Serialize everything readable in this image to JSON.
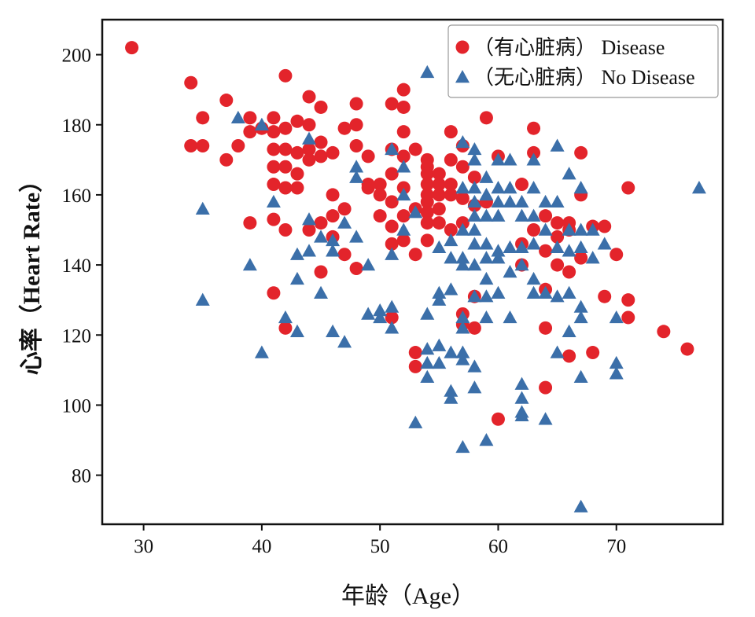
{
  "chart_data": {
    "type": "scatter",
    "xlabel": "年龄（Age）",
    "ylabel": "心率（Heart Rate）",
    "xlim": [
      26.5,
      79
    ],
    "ylim": [
      66,
      210
    ],
    "xticks": [
      30,
      40,
      50,
      60,
      70
    ],
    "yticks": [
      80,
      100,
      120,
      140,
      160,
      180,
      200
    ],
    "grid": false,
    "legend_position": "top-right",
    "series": [
      {
        "name": "（有心脏病） Disease",
        "marker": "circle",
        "color": "#e3242b",
        "points": [
          [
            29,
            202
          ],
          [
            34,
            192
          ],
          [
            34,
            174
          ],
          [
            35,
            174
          ],
          [
            35,
            182
          ],
          [
            37,
            187
          ],
          [
            37,
            170
          ],
          [
            38,
            174
          ],
          [
            39,
            182
          ],
          [
            39,
            178
          ],
          [
            39,
            152
          ],
          [
            40,
            179
          ],
          [
            41,
            182
          ],
          [
            41,
            178
          ],
          [
            41,
            173
          ],
          [
            41,
            168
          ],
          [
            41,
            163
          ],
          [
            41,
            153
          ],
          [
            41,
            132
          ],
          [
            42,
            194
          ],
          [
            42,
            179
          ],
          [
            42,
            173
          ],
          [
            42,
            168
          ],
          [
            42,
            162
          ],
          [
            42,
            150
          ],
          [
            42,
            122
          ],
          [
            43,
            181
          ],
          [
            43,
            172
          ],
          [
            43,
            166
          ],
          [
            43,
            162
          ],
          [
            44,
            188
          ],
          [
            44,
            180
          ],
          [
            44,
            173
          ],
          [
            44,
            170
          ],
          [
            44,
            150
          ],
          [
            45,
            185
          ],
          [
            45,
            175
          ],
          [
            45,
            171
          ],
          [
            45,
            152
          ],
          [
            45,
            138
          ],
          [
            46,
            172
          ],
          [
            46,
            160
          ],
          [
            46,
            154
          ],
          [
            46,
            148
          ],
          [
            47,
            179
          ],
          [
            47,
            156
          ],
          [
            47,
            143
          ],
          [
            48,
            186
          ],
          [
            48,
            180
          ],
          [
            48,
            174
          ],
          [
            48,
            139
          ],
          [
            49,
            171
          ],
          [
            49,
            163
          ],
          [
            49,
            162
          ],
          [
            50,
            163
          ],
          [
            50,
            160
          ],
          [
            50,
            154
          ],
          [
            51,
            186
          ],
          [
            51,
            173
          ],
          [
            51,
            166
          ],
          [
            51,
            158
          ],
          [
            51,
            151
          ],
          [
            51,
            146
          ],
          [
            51,
            125
          ],
          [
            52,
            190
          ],
          [
            52,
            185
          ],
          [
            52,
            178
          ],
          [
            52,
            171
          ],
          [
            52,
            162
          ],
          [
            52,
            154
          ],
          [
            52,
            147
          ],
          [
            53,
            173
          ],
          [
            53,
            156
          ],
          [
            53,
            143
          ],
          [
            53,
            115
          ],
          [
            53,
            111
          ],
          [
            54,
            170
          ],
          [
            54,
            168
          ],
          [
            54,
            166
          ],
          [
            54,
            163
          ],
          [
            54,
            160
          ],
          [
            54,
            158
          ],
          [
            54,
            155
          ],
          [
            54,
            152
          ],
          [
            54,
            147
          ],
          [
            55,
            166
          ],
          [
            55,
            163
          ],
          [
            55,
            160
          ],
          [
            55,
            156
          ],
          [
            55,
            152
          ],
          [
            56,
            178
          ],
          [
            56,
            170
          ],
          [
            56,
            163
          ],
          [
            56,
            160
          ],
          [
            56,
            150
          ],
          [
            57,
            174
          ],
          [
            57,
            168
          ],
          [
            57,
            159
          ],
          [
            57,
            152
          ],
          [
            57,
            126
          ],
          [
            57,
            123
          ],
          [
            58,
            165
          ],
          [
            58,
            157
          ],
          [
            58,
            131
          ],
          [
            58,
            122
          ],
          [
            59,
            182
          ],
          [
            59,
            158
          ],
          [
            60,
            171
          ],
          [
            60,
            96
          ],
          [
            62,
            163
          ],
          [
            62,
            146
          ],
          [
            62,
            140
          ],
          [
            63,
            179
          ],
          [
            63,
            172
          ],
          [
            63,
            150
          ],
          [
            64,
            154
          ],
          [
            64,
            144
          ],
          [
            64,
            133
          ],
          [
            64,
            122
          ],
          [
            64,
            105
          ],
          [
            65,
            152
          ],
          [
            65,
            148
          ],
          [
            65,
            140
          ],
          [
            66,
            152
          ],
          [
            66,
            150
          ],
          [
            66,
            138
          ],
          [
            66,
            114
          ],
          [
            67,
            172
          ],
          [
            67,
            160
          ],
          [
            67,
            142
          ],
          [
            68,
            151
          ],
          [
            68,
            115
          ],
          [
            69,
            151
          ],
          [
            69,
            131
          ],
          [
            70,
            143
          ],
          [
            71,
            162
          ],
          [
            71,
            130
          ],
          [
            71,
            125
          ],
          [
            74,
            121
          ],
          [
            76,
            116
          ]
        ]
      },
      {
        "name": "（无心脏病） No Disease",
        "marker": "triangle",
        "color": "#3b6fa9",
        "points": [
          [
            35,
            156
          ],
          [
            35,
            130
          ],
          [
            38,
            182
          ],
          [
            39,
            140
          ],
          [
            40,
            180
          ],
          [
            40,
            115
          ],
          [
            41,
            158
          ],
          [
            42,
            125
          ],
          [
            43,
            143
          ],
          [
            43,
            136
          ],
          [
            43,
            121
          ],
          [
            44,
            176
          ],
          [
            44,
            153
          ],
          [
            44,
            144
          ],
          [
            45,
            148
          ],
          [
            45,
            132
          ],
          [
            46,
            147
          ],
          [
            46,
            144
          ],
          [
            46,
            121
          ],
          [
            47,
            118
          ],
          [
            47,
            152
          ],
          [
            48,
            168
          ],
          [
            48,
            165
          ],
          [
            48,
            148
          ],
          [
            49,
            140
          ],
          [
            49,
            126
          ],
          [
            50,
            127
          ],
          [
            50,
            125
          ],
          [
            51,
            173
          ],
          [
            51,
            143
          ],
          [
            51,
            122
          ],
          [
            51,
            128
          ],
          [
            52,
            168
          ],
          [
            52,
            160
          ],
          [
            52,
            150
          ],
          [
            53,
            155
          ],
          [
            53,
            95
          ],
          [
            54,
            195
          ],
          [
            54,
            126
          ],
          [
            54,
            116
          ],
          [
            54,
            112
          ],
          [
            54,
            108
          ],
          [
            55,
            145
          ],
          [
            55,
            132
          ],
          [
            55,
            130
          ],
          [
            55,
            117
          ],
          [
            55,
            112
          ],
          [
            56,
            147
          ],
          [
            56,
            142
          ],
          [
            56,
            133
          ],
          [
            56,
            115
          ],
          [
            56,
            104
          ],
          [
            56,
            102
          ],
          [
            57,
            175
          ],
          [
            57,
            162
          ],
          [
            57,
            150
          ],
          [
            57,
            142
          ],
          [
            57,
            140
          ],
          [
            57,
            125
          ],
          [
            57,
            122
          ],
          [
            57,
            115
          ],
          [
            57,
            113
          ],
          [
            57,
            88
          ],
          [
            58,
            173
          ],
          [
            58,
            170
          ],
          [
            58,
            162
          ],
          [
            58,
            158
          ],
          [
            58,
            154
          ],
          [
            58,
            150
          ],
          [
            58,
            146
          ],
          [
            58,
            140
          ],
          [
            58,
            131
          ],
          [
            58,
            111
          ],
          [
            58,
            105
          ],
          [
            59,
            165
          ],
          [
            59,
            160
          ],
          [
            59,
            154
          ],
          [
            59,
            146
          ],
          [
            59,
            142
          ],
          [
            59,
            136
          ],
          [
            59,
            131
          ],
          [
            59,
            125
          ],
          [
            59,
            90
          ],
          [
            60,
            170
          ],
          [
            60,
            162
          ],
          [
            60,
            158
          ],
          [
            60,
            154
          ],
          [
            60,
            144
          ],
          [
            60,
            142
          ],
          [
            60,
            132
          ],
          [
            61,
            170
          ],
          [
            61,
            162
          ],
          [
            61,
            158
          ],
          [
            61,
            145
          ],
          [
            61,
            138
          ],
          [
            61,
            125
          ],
          [
            62,
            158
          ],
          [
            62,
            154
          ],
          [
            62,
            145
          ],
          [
            62,
            140
          ],
          [
            62,
            106
          ],
          [
            62,
            102
          ],
          [
            62,
            98
          ],
          [
            62,
            97
          ],
          [
            63,
            170
          ],
          [
            63,
            162
          ],
          [
            63,
            154
          ],
          [
            63,
            146
          ],
          [
            63,
            136
          ],
          [
            63,
            132
          ],
          [
            64,
            158
          ],
          [
            64,
            150
          ],
          [
            64,
            132
          ],
          [
            64,
            96
          ],
          [
            65,
            174
          ],
          [
            65,
            158
          ],
          [
            65,
            145
          ],
          [
            65,
            131
          ],
          [
            65,
            115
          ],
          [
            66,
            166
          ],
          [
            66,
            150
          ],
          [
            66,
            144
          ],
          [
            66,
            132
          ],
          [
            66,
            121
          ],
          [
            67,
            162
          ],
          [
            67,
            150
          ],
          [
            67,
            145
          ],
          [
            67,
            128
          ],
          [
            67,
            125
          ],
          [
            67,
            108
          ],
          [
            67,
            71
          ],
          [
            68,
            150
          ],
          [
            68,
            142
          ],
          [
            69,
            146
          ],
          [
            70,
            125
          ],
          [
            70,
            112
          ],
          [
            70,
            109
          ],
          [
            77,
            162
          ]
        ]
      }
    ]
  }
}
